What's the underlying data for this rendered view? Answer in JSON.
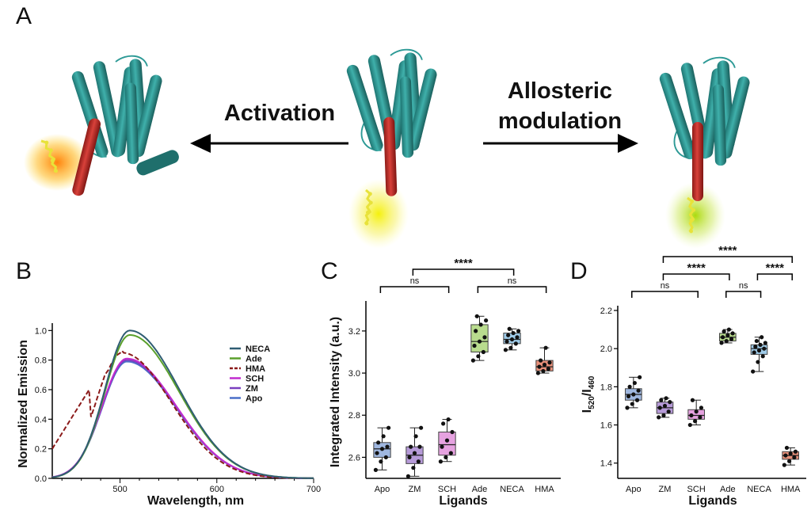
{
  "panels": {
    "a": "A",
    "b": "B",
    "c": "C",
    "d": "D"
  },
  "panelA": {
    "activation": "Activation",
    "allosteric_line1": "Allosteric",
    "allosteric_line2": "modulation",
    "colors": {
      "helix": "#2d9a96",
      "helix_dark": "#1f6f6c",
      "red_helix": "#c0302a",
      "ligand": "#e8e23a",
      "glow_orange": "#ff8c00",
      "glow_yellow": "#f0f020",
      "glow_green": "#b8e020"
    }
  },
  "chart_data": [
    {
      "id": "B",
      "type": "line",
      "title": "",
      "xlabel": "Wavelength, nm",
      "ylabel": "Normalized Emission",
      "xlim": [
        430,
        700
      ],
      "ylim": [
        0,
        1.05
      ],
      "xticks": [
        "500",
        "600",
        "700"
      ],
      "yticks": [
        "0.0",
        "0.2",
        "0.4",
        "0.6",
        "0.8",
        "1.0"
      ],
      "legend_position": "right",
      "series": [
        {
          "name": "NECA",
          "color": "#2f5d73",
          "dash": false,
          "peak": 1.0,
          "peak_nm": 510,
          "start": 0.0
        },
        {
          "name": "Ade",
          "color": "#5aa02c",
          "dash": false,
          "peak": 0.97,
          "peak_nm": 510,
          "start": 0.0
        },
        {
          "name": "HMA",
          "color": "#8b1a1a",
          "dash": true,
          "peak": 0.85,
          "peak_nm": 502,
          "start": 0.2
        },
        {
          "name": "SCH",
          "color": "#c02ccf",
          "dash": false,
          "peak": 0.81,
          "peak_nm": 507,
          "start": 0.0
        },
        {
          "name": "ZM",
          "color": "#7a3fbf",
          "dash": false,
          "peak": 0.8,
          "peak_nm": 507,
          "start": 0.0
        },
        {
          "name": "Apo",
          "color": "#4a6fc8",
          "dash": false,
          "peak": 0.79,
          "peak_nm": 507,
          "start": 0.0
        }
      ]
    },
    {
      "id": "C",
      "type": "box",
      "xlabel": "Ligands",
      "ylabel": "Integrated Intensity (a.u.)",
      "ylim": [
        2.5,
        3.32
      ],
      "yticks": [
        "2.6",
        "2.8",
        "3.0",
        "3.2"
      ],
      "categories": [
        "Apo",
        "ZM",
        "SCH",
        "Ade",
        "NECA",
        "HMA"
      ],
      "colors": [
        "#9fb7e0",
        "#b69ad8",
        "#e6a2e0",
        "#b9dc8e",
        "#9fcbe8",
        "#e8907a"
      ],
      "boxes": [
        {
          "min": 2.54,
          "q1": 2.6,
          "median": 2.64,
          "q3": 2.67,
          "max": 2.74,
          "points": [
            2.54,
            2.58,
            2.6,
            2.62,
            2.64,
            2.65,
            2.67,
            2.7,
            2.74
          ]
        },
        {
          "min": 2.51,
          "q1": 2.57,
          "median": 2.61,
          "q3": 2.65,
          "max": 2.74,
          "points": [
            2.51,
            2.55,
            2.58,
            2.6,
            2.62,
            2.65,
            2.65,
            2.7,
            2.74
          ]
        },
        {
          "min": 2.58,
          "q1": 2.61,
          "median": 2.66,
          "q3": 2.72,
          "max": 2.78,
          "points": [
            2.58,
            2.6,
            2.62,
            2.65,
            2.68,
            2.72,
            2.76,
            2.78
          ]
        },
        {
          "min": 3.06,
          "q1": 3.1,
          "median": 3.15,
          "q3": 3.23,
          "max": 3.27,
          "points": [
            3.06,
            3.08,
            3.1,
            3.13,
            3.15,
            3.17,
            3.2,
            3.23,
            3.25,
            3.27
          ]
        },
        {
          "min": 3.11,
          "q1": 3.14,
          "median": 3.16,
          "q3": 3.19,
          "max": 3.21,
          "points": [
            3.11,
            3.12,
            3.14,
            3.15,
            3.16,
            3.17,
            3.18,
            3.19,
            3.2,
            3.21
          ]
        },
        {
          "min": 3.0,
          "q1": 3.01,
          "median": 3.03,
          "q3": 3.06,
          "max": 3.12,
          "points": [
            3.0,
            3.01,
            3.02,
            3.03,
            3.04,
            3.05,
            3.06,
            3.12
          ]
        }
      ],
      "brackets": [
        {
          "from": 0,
          "to": 2,
          "level": 0,
          "label": "ns",
          "bold": false
        },
        {
          "from": 3,
          "to": 5,
          "level": 0,
          "label": "ns",
          "bold": false
        },
        {
          "from": 1,
          "to": 4,
          "level": 1,
          "label": "****",
          "bold": true
        }
      ]
    },
    {
      "id": "D",
      "type": "box",
      "xlabel": "Ligands",
      "ylabel_main": "I",
      "ylabel_sub1": "520",
      "ylabel_mid": "/I",
      "ylabel_sub2": "460",
      "ylim": [
        1.32,
        2.2
      ],
      "yticks": [
        "1.4",
        "1.6",
        "1.8",
        "2.0",
        "2.2"
      ],
      "categories": [
        "Apo",
        "ZM",
        "SCH",
        "Ade",
        "NECA",
        "HMA"
      ],
      "colors": [
        "#9fb7e0",
        "#b69ad8",
        "#e6a2e0",
        "#b9dc8e",
        "#9fcbe8",
        "#e8907a"
      ],
      "boxes": [
        {
          "min": 1.69,
          "q1": 1.73,
          "median": 1.76,
          "q3": 1.79,
          "max": 1.85,
          "points": [
            1.69,
            1.71,
            1.73,
            1.75,
            1.76,
            1.78,
            1.8,
            1.82,
            1.85
          ]
        },
        {
          "min": 1.64,
          "q1": 1.66,
          "median": 1.69,
          "q3": 1.72,
          "max": 1.74,
          "points": [
            1.64,
            1.65,
            1.67,
            1.69,
            1.7,
            1.72,
            1.73,
            1.74
          ]
        },
        {
          "min": 1.6,
          "q1": 1.63,
          "median": 1.65,
          "q3": 1.68,
          "max": 1.73,
          "points": [
            1.6,
            1.62,
            1.64,
            1.65,
            1.67,
            1.69,
            1.73
          ]
        },
        {
          "min": 2.03,
          "q1": 2.04,
          "median": 2.06,
          "q3": 2.08,
          "max": 2.1,
          "points": [
            2.03,
            2.04,
            2.05,
            2.06,
            2.07,
            2.08,
            2.09,
            2.1
          ]
        },
        {
          "min": 1.88,
          "q1": 1.97,
          "median": 2.0,
          "q3": 2.02,
          "max": 2.06,
          "points": [
            1.88,
            1.93,
            1.96,
            1.98,
            1.99,
            2.0,
            2.01,
            2.02,
            2.03,
            2.04,
            2.06
          ]
        },
        {
          "min": 1.39,
          "q1": 1.42,
          "median": 1.44,
          "q3": 1.46,
          "max": 1.48,
          "points": [
            1.39,
            1.41,
            1.43,
            1.44,
            1.45,
            1.46,
            1.48
          ]
        }
      ],
      "brackets": [
        {
          "from": 0,
          "to": 2,
          "level": 0,
          "label": "ns",
          "bold": false
        },
        {
          "from": 3,
          "to": 4,
          "level": 0,
          "label": "ns",
          "bold": false
        },
        {
          "from": 1,
          "to": 3,
          "level": 1,
          "label": "****",
          "bold": true
        },
        {
          "from": 4,
          "to": 5,
          "level": 1,
          "label": "****",
          "bold": true
        },
        {
          "from": 1,
          "to": 5,
          "level": 2,
          "label": "****",
          "bold": true
        }
      ]
    }
  ]
}
